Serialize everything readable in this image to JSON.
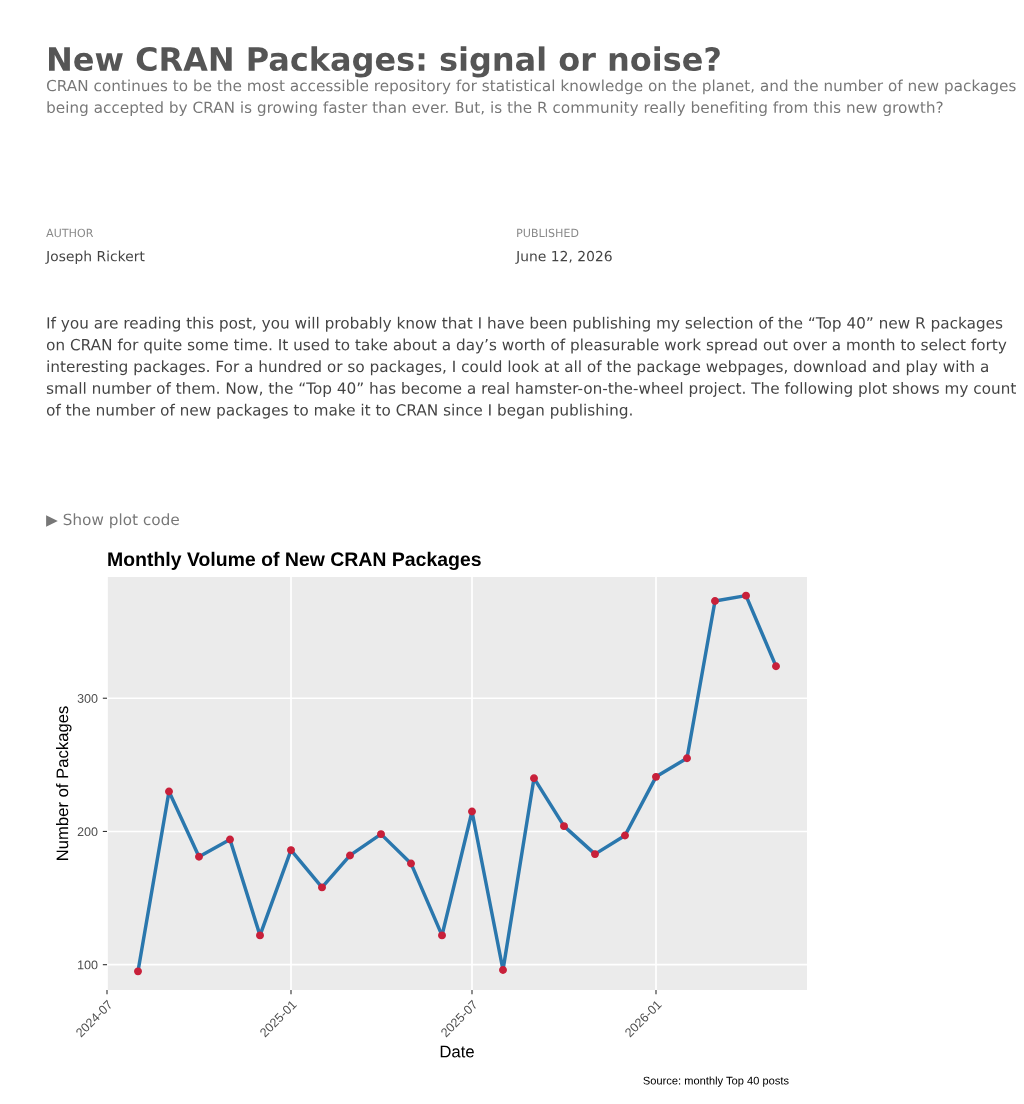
{
  "chart_data": {
    "type": "line",
    "title": "Monthly Volume of New CRAN Packages",
    "xlabel": "Date",
    "ylabel": "Number of Packages",
    "x": [
      "2024-08",
      "2024-09",
      "2024-10",
      "2024-11",
      "2024-12",
      "2025-01",
      "2025-02",
      "2025-03",
      "2025-04",
      "2025-05",
      "2025-06",
      "2025-07",
      "2025-08",
      "2025-09",
      "2025-10",
      "2025-11",
      "2025-12",
      "2026-01",
      "2026-02",
      "2026-03",
      "2026-04",
      "2026-05"
    ],
    "series": [
      {
        "color": "#2a77ad",
        "marker": "none",
        "values": [
          95,
          230,
          181,
          194,
          122,
          186,
          158,
          182,
          198,
          176,
          122,
          215,
          96,
          240,
          204,
          183,
          197,
          241,
          255,
          373,
          377,
          324
        ]
      },
      {
        "type": "scatter",
        "color": "#c8203a",
        "marker": "circle",
        "values": [
          95,
          230,
          181,
          194,
          122,
          186,
          158,
          182,
          198,
          176,
          122,
          215,
          96,
          240,
          204,
          183,
          197,
          241,
          255,
          373,
          377,
          324
        ]
      }
    ],
    "xlim": [
      "2024-07-01",
      "2026-06-01"
    ],
    "xticks": [
      "2024-07",
      "2025-01",
      "2025-07",
      "2026-01"
    ],
    "ylim": [
      81,
      391
    ],
    "yticks": [
      100,
      200,
      300
    ],
    "grid": true,
    "legend": false,
    "annotations": [
      "New CRAN Packages: signal or noise?",
      "CRAN continues to be the most accessible repository for statistical knowledge on the planet, and the number of new packages being accepted by CRAN is growing faster than ever. But, is the R community really benefiting from this new growth?",
      "AUTHOR",
      "Joseph Rickert",
      "PUBLISHED",
      "June 12, 2026",
      "If you are reading this post, you will probably know that I have been publishing my selection of the “Top 40” new R packages on CRAN for quite some time. It used to take about a day’s worth of pleasurable work spread out over a month to select forty interesting packages. For a hundred or so packages, I could look at all of the package webpages, download and play with a small number of them. Now, the “Top 40” has become a real hamster-on-the-wheel project. The following plot shows my count of the number of new packages to make it to CRAN since I began publishing.",
      "▶ Show plot code",
      "Source: monthly Top 40 posts"
    ]
  }
}
